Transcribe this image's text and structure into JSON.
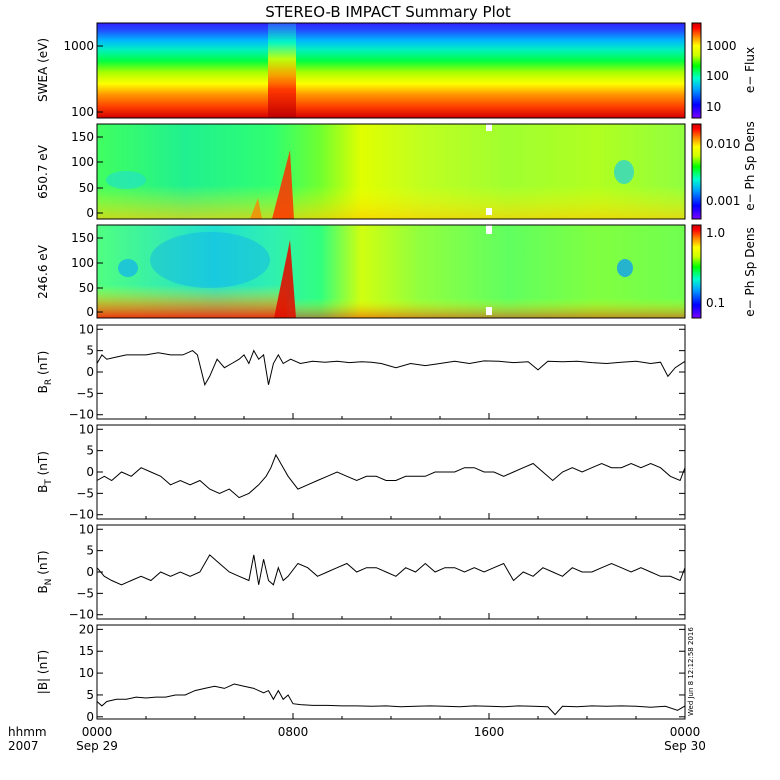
{
  "chart_data": {
    "title": "STEREO-B IMPACT Summary Plot",
    "x_axis": {
      "corner_labels": [
        "hhmm",
        "2007"
      ],
      "ticks": [
        {
          "top": "0000",
          "bottom": "Sep 29"
        },
        {
          "top": "0800",
          "bottom": ""
        },
        {
          "top": "1600",
          "bottom": ""
        },
        {
          "top": "0000",
          "bottom": "Sep 30"
        }
      ],
      "range_hours": [
        0,
        24
      ]
    },
    "timestamp": "Wed Jun  8 12:12:58 2016",
    "spectrograms": [
      {
        "type": "heatmap",
        "ylabel": "SWEA (eV)",
        "yscale": "log",
        "ylim": [
          90,
          2000
        ],
        "yticks": [
          "1000",
          "100"
        ],
        "colorbar_label": "e− Flux",
        "colorbar_ticks": [
          "1000",
          "100",
          "10"
        ]
      },
      {
        "type": "heatmap",
        "ylabel": "650.7 eV",
        "ylim": [
          -10,
          180
        ],
        "yticks": [
          "150",
          "100",
          "50",
          "0"
        ],
        "colorbar_label": "e− Ph Sp Dens",
        "colorbar_ticks": [
          "0.010",
          "0.001"
        ]
      },
      {
        "type": "heatmap",
        "ylabel": "246.6 eV",
        "ylim": [
          -10,
          180
        ],
        "yticks": [
          "150",
          "100",
          "50",
          "0"
        ],
        "colorbar_label": "e− Ph Sp Dens",
        "colorbar_ticks": [
          "1.0",
          "0.1"
        ]
      }
    ],
    "line_panels": [
      {
        "type": "line",
        "ylabel": "B",
        "ylabel_sub": "R",
        "ylabel_unit": " (nT)",
        "ylim": [
          -11,
          11
        ],
        "yticks": [
          "10",
          "5",
          "0",
          "−5",
          "−10"
        ],
        "x_hours": [
          0,
          0.2,
          0.4,
          0.8,
          1.2,
          1.6,
          2.0,
          2.5,
          3.0,
          3.5,
          3.9,
          4.1,
          4.4,
          4.6,
          4.9,
          5.2,
          5.5,
          5.8,
          6.0,
          6.2,
          6.4,
          6.6,
          6.8,
          7.0,
          7.2,
          7.4,
          7.6,
          7.9,
          8.3,
          8.8,
          9.3,
          9.8,
          10.3,
          10.8,
          11.2,
          11.6,
          12.2,
          12.8,
          13.4,
          14.0,
          14.6,
          15.2,
          15.8,
          16.4,
          17.0,
          17.6,
          18.0,
          18.4,
          19.0,
          19.6,
          20.2,
          20.8,
          21.4,
          22.0,
          22.6,
          23.0,
          23.3,
          23.6,
          24.0
        ],
        "values": [
          2,
          4,
          3,
          3.5,
          4,
          4,
          4,
          4.5,
          4,
          4,
          5,
          4,
          -3,
          -1,
          3,
          1,
          2,
          3,
          4,
          2,
          5,
          3,
          4,
          -3,
          2,
          4,
          2,
          3,
          2,
          2.5,
          2.3,
          2.5,
          2.2,
          2.4,
          2.3,
          2,
          1,
          2,
          1.5,
          2,
          2.5,
          2,
          2.6,
          2.5,
          2.2,
          2.4,
          0.5,
          2.5,
          2.4,
          2.5,
          2.2,
          2,
          2.3,
          2.5,
          2,
          2.3,
          -1,
          1,
          2.5
        ]
      },
      {
        "type": "line",
        "ylabel": "B",
        "ylabel_sub": "T",
        "ylabel_unit": " (nT)",
        "ylim": [
          -11,
          11
        ],
        "yticks": [
          "10",
          "5",
          "0",
          "−5",
          "−10"
        ],
        "x_hours": [
          0,
          0.3,
          0.6,
          1.0,
          1.4,
          1.8,
          2.2,
          2.6,
          3.0,
          3.4,
          3.8,
          4.2,
          4.6,
          5.0,
          5.4,
          5.8,
          6.2,
          6.6,
          6.9,
          7.1,
          7.3,
          7.5,
          7.8,
          8.2,
          8.6,
          9.0,
          9.4,
          9.8,
          10.2,
          10.6,
          11.0,
          11.4,
          11.8,
          12.2,
          12.6,
          13.0,
          13.4,
          13.8,
          14.2,
          14.6,
          15.0,
          15.4,
          15.8,
          16.2,
          16.6,
          17.0,
          17.4,
          17.8,
          18.2,
          18.6,
          19.0,
          19.4,
          19.8,
          20.2,
          20.6,
          21.0,
          21.4,
          21.8,
          22.2,
          22.6,
          23.0,
          23.4,
          23.8,
          24.0
        ],
        "values": [
          -2,
          -1,
          -2,
          0,
          -1,
          1,
          0,
          -1,
          -3,
          -2,
          -3,
          -2,
          -4,
          -5,
          -4,
          -6,
          -5,
          -3,
          -1,
          1,
          4,
          2,
          -1,
          -4,
          -3,
          -2,
          -1,
          0,
          -1,
          -2,
          -1,
          -1,
          -2,
          -2,
          -1,
          -1,
          -1,
          0,
          0,
          0,
          1,
          1,
          0,
          0,
          -1,
          0,
          1,
          2,
          0,
          -2,
          0,
          1,
          0,
          1,
          2,
          1,
          1,
          2,
          1,
          2,
          1,
          -1,
          -2,
          1
        ]
      },
      {
        "type": "line",
        "ylabel": "B",
        "ylabel_sub": "N",
        "ylabel_unit": " (nT)",
        "ylim": [
          -11,
          11
        ],
        "yticks": [
          "10",
          "5",
          "0",
          "−5",
          "−10"
        ],
        "x_hours": [
          0,
          0.3,
          0.6,
          1.0,
          1.4,
          1.8,
          2.2,
          2.6,
          3.0,
          3.4,
          3.8,
          4.2,
          4.6,
          5.0,
          5.4,
          5.8,
          6.2,
          6.4,
          6.6,
          6.8,
          7.0,
          7.2,
          7.4,
          7.6,
          7.8,
          8.2,
          8.6,
          9.0,
          9.4,
          9.8,
          10.2,
          10.6,
          11.0,
          11.4,
          11.8,
          12.2,
          12.6,
          13.0,
          13.4,
          13.8,
          14.2,
          14.6,
          15.0,
          15.4,
          15.8,
          16.2,
          16.6,
          17.0,
          17.4,
          17.8,
          18.2,
          18.6,
          19.0,
          19.4,
          19.8,
          20.2,
          20.6,
          21.0,
          21.4,
          21.8,
          22.2,
          22.6,
          23.0,
          23.4,
          23.8,
          24.0
        ],
        "values": [
          1,
          -1,
          -2,
          -3,
          -2,
          -1,
          -2,
          0,
          -1,
          0,
          -1,
          0,
          4,
          2,
          0,
          -1,
          -2,
          4,
          -3,
          3,
          -2,
          -3,
          1,
          -2,
          -1,
          2,
          1,
          -1,
          0,
          1,
          2,
          0,
          1,
          1,
          0,
          -1,
          1,
          0,
          2,
          0,
          1,
          1,
          0,
          1,
          0,
          1,
          2,
          -2,
          0,
          -1,
          1,
          0,
          -1,
          1,
          0,
          0,
          1,
          2,
          1,
          0,
          1,
          0,
          -1,
          -1,
          -2,
          1
        ]
      },
      {
        "type": "line",
        "ylabel": "|B|",
        "ylabel_sub": "",
        "ylabel_unit": " (nT)",
        "ylim": [
          -0.5,
          21
        ],
        "yticks": [
          "20",
          "15",
          "10",
          "5",
          "0"
        ],
        "x_hours": [
          0,
          0.2,
          0.4,
          0.8,
          1.2,
          1.6,
          2.0,
          2.4,
          2.8,
          3.2,
          3.6,
          4.0,
          4.4,
          4.8,
          5.2,
          5.6,
          6.0,
          6.4,
          6.8,
          7.0,
          7.2,
          7.4,
          7.6,
          7.8,
          8.0,
          8.3,
          8.8,
          9.4,
          10.0,
          10.6,
          11.2,
          11.8,
          12.4,
          13.0,
          13.6,
          14.2,
          14.8,
          15.4,
          16.0,
          16.6,
          17.2,
          17.8,
          18.4,
          18.7,
          19.0,
          19.6,
          20.2,
          20.8,
          21.4,
          22.0,
          22.6,
          23.2,
          23.7,
          24.0
        ],
        "values": [
          3.5,
          2.5,
          3.5,
          4,
          4,
          4.5,
          4.3,
          4.5,
          4.5,
          5,
          5,
          6,
          6.5,
          7,
          6.5,
          7.5,
          7,
          6.5,
          5.5,
          6,
          4,
          6,
          4,
          5,
          3,
          2.8,
          2.6,
          2.6,
          2.5,
          2.5,
          2.4,
          2.5,
          2.3,
          2.4,
          2.5,
          2.4,
          2.3,
          2.5,
          2.4,
          2.3,
          2.5,
          2.4,
          2.3,
          0.5,
          2.4,
          2.3,
          2.5,
          2.4,
          2.5,
          2.4,
          2.2,
          2.4,
          1.5,
          2.5
        ]
      }
    ]
  },
  "colors": {
    "spectral_scale": [
      "#7b00ff",
      "#0000ff",
      "#00a0ff",
      "#00ffcc",
      "#00ff00",
      "#ccff00",
      "#ffff00",
      "#ff8000",
      "#ff0000",
      "#cc0000"
    ]
  }
}
